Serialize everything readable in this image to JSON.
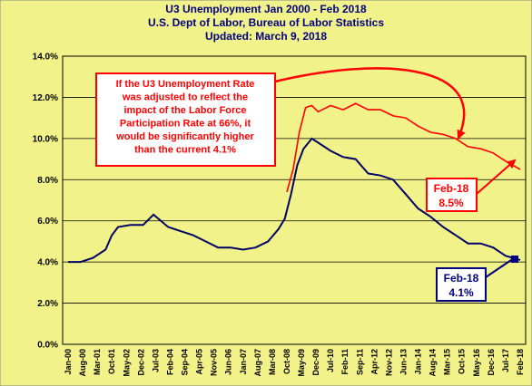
{
  "colors": {
    "frame_background": "#f2f28a",
    "plot_background": "#f2f28a",
    "u3_line": "#000066",
    "adjusted_line": "#ff0000",
    "callout_border": "#ff0000",
    "feb18_blue_border": "#000080"
  },
  "chart_data": {
    "type": "line",
    "title": "U3 Unemployment  Jan 2000 - Feb 2018",
    "subtitle_1": "U.S. Dept of Labor, Bureau of Labor Statistics",
    "subtitle_2": "Updated: March 9, 2018",
    "ylim": [
      0,
      14
    ],
    "y_ticks": [
      "0.0%",
      "2.0%",
      "4.0%",
      "6.0%",
      "8.0%",
      "10.0%",
      "12.0%",
      "14.0%"
    ],
    "y_tick_values": [
      0,
      2,
      4,
      6,
      8,
      10,
      12,
      14
    ],
    "grid": true,
    "x_start": "Jan-00",
    "x_end": "Feb-18",
    "x_ticks": [
      "Jan-00",
      "Aug-00",
      "Mar-01",
      "Oct-01",
      "May-02",
      "Dec-02",
      "Jul-03",
      "Feb-04",
      "Sep-04",
      "Apr-05",
      "Nov-05",
      "Jun-06",
      "Jan-07",
      "Aug-07",
      "Mar-08",
      "Oct-08",
      "May-09",
      "Dec-09",
      "Jul-10",
      "Feb-11",
      "Sep-11",
      "Apr-12",
      "Nov-12",
      "Jun-13",
      "Jan-14",
      "Aug-14",
      "Mar-15",
      "Oct-15",
      "May-16",
      "Dec-16",
      "Jul-17",
      "Feb-18"
    ],
    "series": [
      {
        "key": "u3",
        "x": [
          "Jan-00",
          "Jul-00",
          "Jan-01",
          "Jul-01",
          "Oct-01",
          "Jan-02",
          "Jul-02",
          "Jan-03",
          "Jun-03",
          "Jan-04",
          "Jul-04",
          "Jan-05",
          "Jul-05",
          "Jan-06",
          "Jul-06",
          "Jan-07",
          "Jul-07",
          "Jan-08",
          "Jun-08",
          "Sep-08",
          "Dec-08",
          "Mar-09",
          "Jun-09",
          "Oct-09",
          "Jan-10",
          "Jul-10",
          "Jan-11",
          "Jul-11",
          "Jan-12",
          "Jul-12",
          "Jan-13",
          "Jul-13",
          "Jan-14",
          "Jul-14",
          "Jan-15",
          "Jul-15",
          "Jan-16",
          "Jul-16",
          "Jan-17",
          "Jul-17",
          "Feb-18"
        ],
        "values": [
          4.0,
          4.0,
          4.2,
          4.6,
          5.3,
          5.7,
          5.8,
          5.8,
          6.3,
          5.7,
          5.5,
          5.3,
          5.0,
          4.7,
          4.7,
          4.6,
          4.7,
          5.0,
          5.6,
          6.1,
          7.3,
          8.7,
          9.5,
          10.0,
          9.8,
          9.4,
          9.1,
          9.0,
          8.3,
          8.2,
          8.0,
          7.3,
          6.6,
          6.2,
          5.7,
          5.3,
          4.9,
          4.9,
          4.7,
          4.3,
          4.1
        ]
      },
      {
        "key": "adjusted",
        "x": [
          "Oct-08",
          "Jan-09",
          "Apr-09",
          "Jul-09",
          "Oct-09",
          "Jan-10",
          "Jul-10",
          "Jan-11",
          "Jul-11",
          "Jan-12",
          "Jul-12",
          "Jan-13",
          "Jul-13",
          "Jan-14",
          "Jul-14",
          "Jan-15",
          "Jul-15",
          "Jan-16",
          "Jul-16",
          "Jan-17",
          "Jul-17",
          "Feb-18"
        ],
        "values": [
          7.4,
          8.5,
          10.3,
          11.5,
          11.6,
          11.3,
          11.6,
          11.4,
          11.7,
          11.4,
          11.4,
          11.1,
          11.0,
          10.6,
          10.3,
          10.2,
          10.0,
          9.6,
          9.5,
          9.3,
          8.9,
          8.5
        ]
      }
    ],
    "annotations": {
      "callout_lines": [
        "If the U3 Unemployment  Rate",
        "was adjusted to reflect the",
        "impact of the Labor Force",
        "Participation Rate at 66%,  it",
        "would be significantly higher",
        "than the current 4.1%"
      ],
      "label_adjusted": [
        "Feb-18",
        "8.5%"
      ],
      "label_u3": [
        "Feb-18",
        "4.1%"
      ]
    }
  }
}
